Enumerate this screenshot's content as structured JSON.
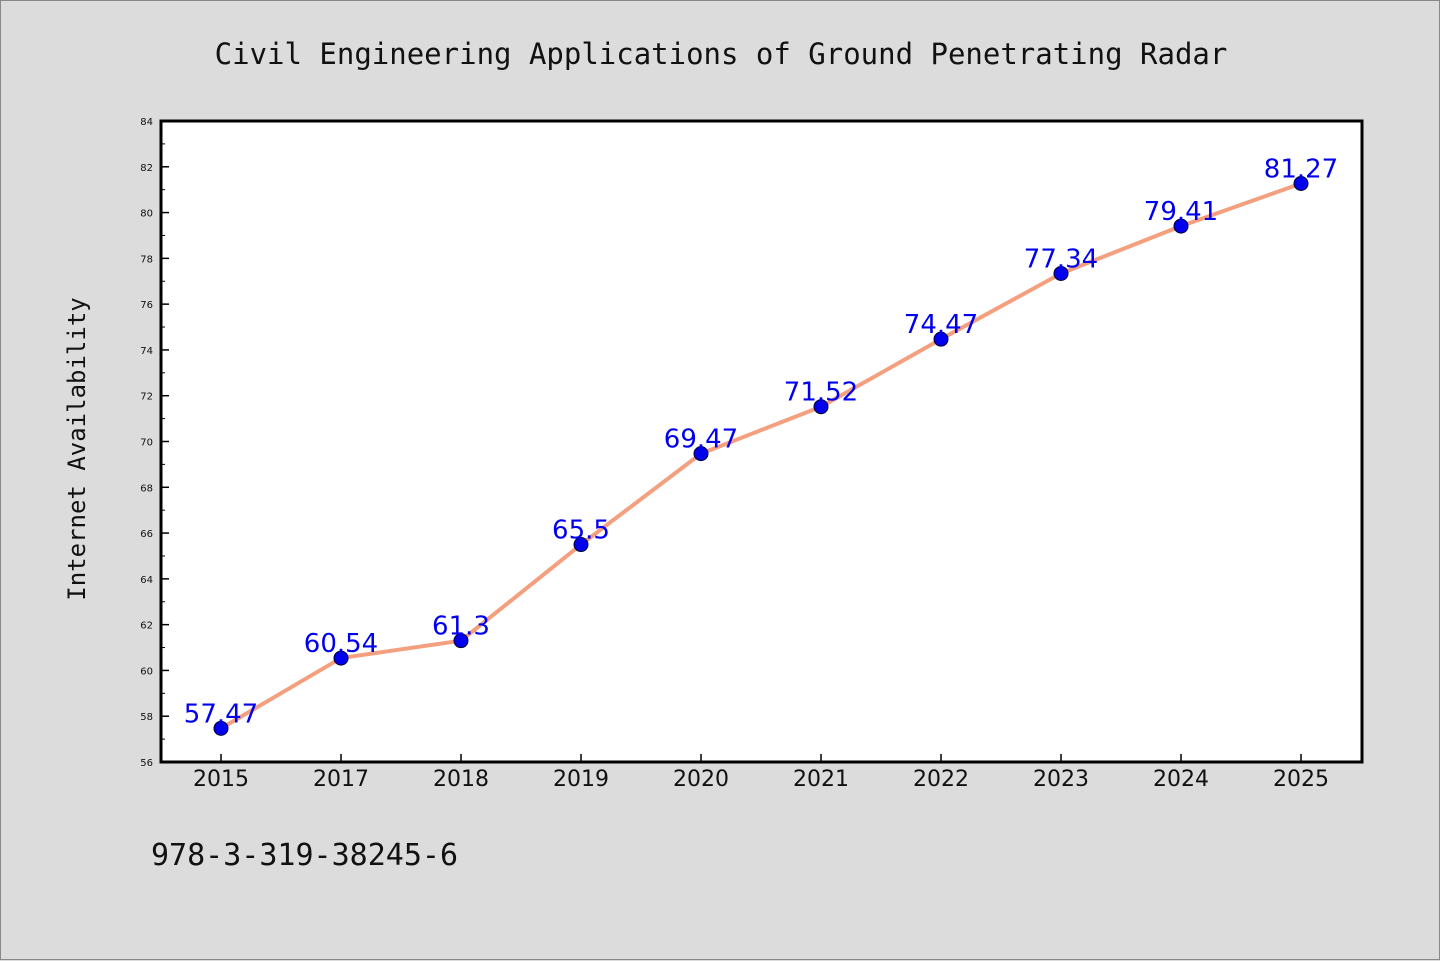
{
  "chart_data": {
    "type": "line",
    "title": "Civil Engineering Applications of Ground Penetrating Radar",
    "xlabel": "",
    "ylabel": "Internet Availability",
    "categories": [
      "2015",
      "2017",
      "2018",
      "2019",
      "2020",
      "2021",
      "2022",
      "2023",
      "2024",
      "2025"
    ],
    "values": [
      57.47,
      60.54,
      61.3,
      65.5,
      69.47,
      71.52,
      74.47,
      77.34,
      79.41,
      81.27
    ],
    "data_labels": [
      "57.47",
      "60.54",
      "61.3",
      "65.5",
      "69.47",
      "71.52",
      "74.47",
      "77.34",
      "79.41",
      "81.27"
    ],
    "ylim": [
      56,
      84
    ],
    "yticks": [
      56,
      58,
      60,
      62,
      64,
      66,
      68,
      70,
      72,
      74,
      76,
      78,
      80,
      82,
      84
    ],
    "grid": false,
    "line_color": "#f4a07e",
    "marker_color": "#0000ee",
    "label_color": "#0000ee"
  },
  "footer": {
    "isbn": "978-3-319-38245-6"
  }
}
